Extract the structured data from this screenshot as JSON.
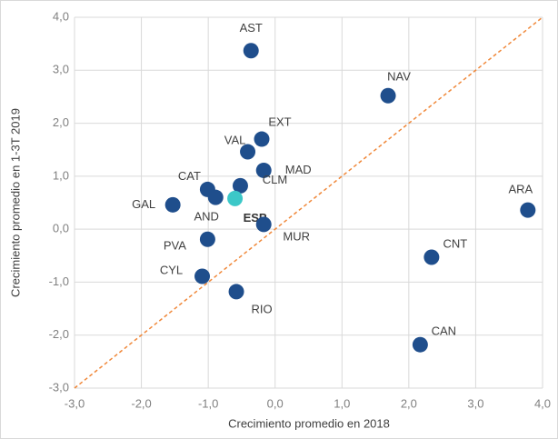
{
  "chart_data": {
    "type": "scatter",
    "x_label": "Crecimiento promedio  en 2018",
    "y_label": "Crecimiento promedio  en 1-3T 2019",
    "labels": [
      "AST",
      "NAV",
      "EXT",
      "VAL",
      "MAD",
      "CAT",
      "AND",
      "CLM",
      "ESP",
      "GAL",
      "MUR",
      "PVA",
      "ARA",
      "CNT",
      "CYL",
      "RIO",
      "CAN"
    ],
    "x": [
      -0.36,
      1.69,
      -0.2,
      -0.41,
      -0.17,
      -1.01,
      -0.89,
      -0.52,
      -0.6,
      -1.53,
      -0.17,
      -1.01,
      3.78,
      2.34,
      -1.09,
      -0.58,
      2.17
    ],
    "y": [
      3.37,
      2.52,
      1.7,
      1.46,
      1.11,
      0.75,
      0.6,
      0.82,
      0.58,
      0.46,
      0.09,
      -0.19,
      0.36,
      -0.53,
      -0.89,
      -1.18,
      -2.18
    ],
    "colors": [
      "#1f4e8c",
      "#1f4e8c",
      "#1f4e8c",
      "#1f4e8c",
      "#1f4e8c",
      "#1f4e8c",
      "#1f4e8c",
      "#1f4e8c",
      "#3cc8c8",
      "#1f4e8c",
      "#1f4e8c",
      "#1f4e8c",
      "#1f4e8c",
      "#1f4e8c",
      "#1f4e8c",
      "#1f4e8c",
      "#1f4e8c"
    ],
    "color": "#1f4e8c",
    "xlim": [
      -3,
      4
    ],
    "ylim": [
      -3,
      4
    ],
    "xticks": [
      {
        "value": -3,
        "label": "-3,0"
      },
      {
        "value": -2,
        "label": "-2,0"
      },
      {
        "value": -1,
        "label": "-1,0"
      },
      {
        "value": 0,
        "label": "0,0"
      },
      {
        "value": 1,
        "label": "1,0"
      },
      {
        "value": 2,
        "label": "2,0"
      },
      {
        "value": 3,
        "label": "3,0"
      },
      {
        "value": 4,
        "label": "4,0"
      }
    ],
    "yticks": [
      {
        "value": -3,
        "label": "-3,0"
      },
      {
        "value": -2,
        "label": "-2,0"
      },
      {
        "value": -1,
        "label": "-1,0"
      },
      {
        "value": 0,
        "label": "0,0"
      },
      {
        "value": 1,
        "label": "1,0"
      },
      {
        "value": 2,
        "label": "2,0"
      },
      {
        "value": 3,
        "label": "3,0"
      },
      {
        "value": 4,
        "label": "4,0"
      }
    ],
    "grid": true,
    "diagonal_color": "#f0883a"
  }
}
